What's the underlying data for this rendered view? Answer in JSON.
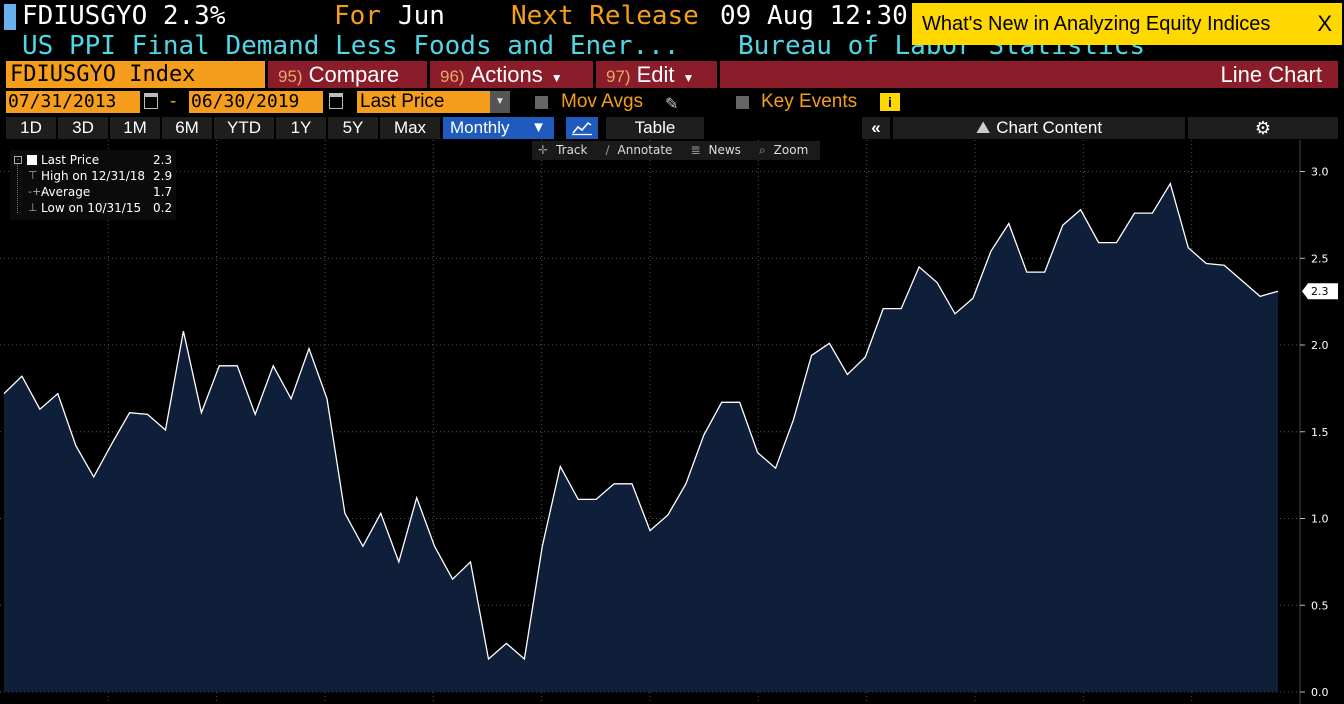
{
  "header": {
    "ticker_line": "FDIUSGYO 2.3%",
    "for_label": "For",
    "for_value": "Jun",
    "next_release_label": "Next Release",
    "next_release_value": "09 Aug 12:30",
    "description": "US PPI Final Demand Less Foods and Ener...",
    "source": "Bureau of Labor Statistics"
  },
  "banner": {
    "text": "What's New in Analyzing Equity Indices",
    "close": "X"
  },
  "toolbar1": {
    "security": "FDIUSGYO Index",
    "compare_num": "95)",
    "compare_label": "Compare",
    "actions_num": "96)",
    "actions_label": "Actions",
    "edit_num": "97)",
    "edit_label": "Edit",
    "chart_type": "Line Chart"
  },
  "toolbar2": {
    "start_date": "07/31/2013",
    "separator": "-",
    "end_date": "06/30/2019",
    "field": "Last Price",
    "mov_avgs": "Mov Avgs",
    "key_events": "Key Events",
    "info_glyph": "i"
  },
  "toolbar3": {
    "ranges": [
      "1D",
      "3D",
      "1M",
      "6M",
      "YTD",
      "1Y",
      "5Y",
      "Max"
    ],
    "frequency": "Monthly",
    "table": "Table",
    "collapse": "«",
    "chart_content": "Chart Content",
    "settings_glyph": "⚙"
  },
  "chart_tools": {
    "track": "Track",
    "annotate": "Annotate",
    "news": "News",
    "zoom": "Zoom"
  },
  "legend": {
    "last_label": "Last Price",
    "last_value": "2.3",
    "high_label": "High on 12/31/18",
    "high_value": "2.9",
    "avg_label": "Average",
    "avg_value": "1.7",
    "low_label": "Low on 10/31/15",
    "low_value": "0.2"
  },
  "chart_data": {
    "type": "area",
    "x_start": "07/31/2013",
    "x_end": "06/30/2019",
    "frequency": "monthly",
    "ylim": [
      0,
      3.1
    ],
    "yticks": [
      "0.0",
      "0.5",
      "1.0",
      "1.5",
      "2.0",
      "2.5",
      "3.0"
    ],
    "grid": true,
    "last_value_label": "2.3",
    "series": [
      {
        "values": [
          1.72,
          1.82,
          1.63,
          1.72,
          1.42,
          1.24,
          1.43,
          1.61,
          1.6,
          1.51,
          2.08,
          1.61,
          1.88,
          1.88,
          1.6,
          1.88,
          1.69,
          1.98,
          1.69,
          1.03,
          0.84,
          1.03,
          0.75,
          1.12,
          0.84,
          0.65,
          0.75,
          0.19,
          0.28,
          0.19,
          0.84,
          1.3,
          1.11,
          1.11,
          1.2,
          1.2,
          0.93,
          1.02,
          1.2,
          1.48,
          1.67,
          1.67,
          1.38,
          1.29,
          1.57,
          1.94,
          2.01,
          1.83,
          1.93,
          2.21,
          2.21,
          2.45,
          2.36,
          2.18,
          2.27,
          2.54,
          2.7,
          2.42,
          2.42,
          2.69,
          2.78,
          2.59,
          2.59,
          2.76,
          2.76,
          2.93,
          2.56,
          2.47,
          2.46,
          2.37,
          2.28,
          2.31
        ]
      }
    ]
  }
}
